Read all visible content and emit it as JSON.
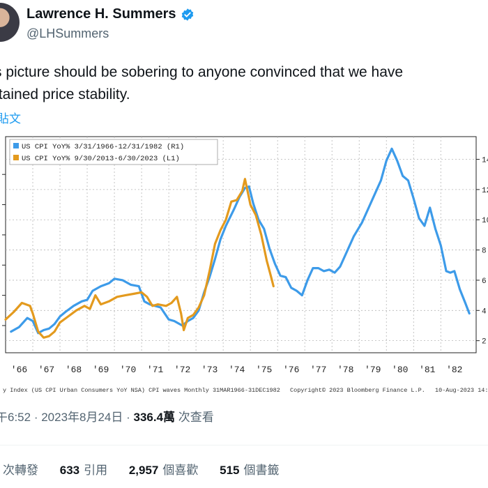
{
  "tweet": {
    "display_name": "Lawrence H. Summers",
    "handle": "@LHSummers",
    "text_line1": "s picture should be sobering to anyone convinced that we have",
    "text_line2": "ttained price stability.",
    "translate_label": "貼文"
  },
  "chart_footer": {
    "source_left": "y Index (US CPI Urban Consumers YoY NSA) CPI waves  Monthly 31MAR1966-31DEC1982",
    "copyright": "Copyright© 2023 Bloomberg Finance L.P.",
    "date_stamp": "10-Aug-2023 14:5"
  },
  "meta": {
    "time": "午6:52",
    "separator": " · ",
    "date": "2023年8月24日",
    "views_count": "336.4萬",
    "views_label": " 次查看"
  },
  "stats": {
    "reposts_label": "次轉發",
    "quotes_count": "633",
    "quotes_label": "引用",
    "likes_count": "2,957",
    "likes_label": "個喜歡",
    "bookmarks_count": "515",
    "bookmarks_label": "個書籤"
  },
  "colors": {
    "series_1966": "#3d9be9",
    "series_2013": "#e39a1e",
    "verified": "#1d9bf0"
  },
  "chart_data": {
    "type": "line",
    "x_ticks": [
      "'66",
      "'67",
      "'68",
      "'69",
      "'70",
      "'71",
      "'72",
      "'73",
      "'74",
      "'75",
      "'76",
      "'77",
      "'78",
      "'79",
      "'80",
      "'81",
      "'82"
    ],
    "right_axis_ticks": [
      "2",
      "4",
      "6",
      "8",
      "10",
      "12",
      "14"
    ],
    "right_axis_range": [
      1.2,
      15.5
    ],
    "x_range": [
      1966.0,
      1983.3
    ],
    "series": [
      {
        "name": "US CPI YoY% 3/31/1966-12/31/1982 (R1)",
        "color": "#3d9be9",
        "points": [
          [
            1966.2,
            2.6
          ],
          [
            1966.5,
            2.9
          ],
          [
            1966.8,
            3.5
          ],
          [
            1967.0,
            3.3
          ],
          [
            1967.2,
            2.5
          ],
          [
            1967.4,
            2.7
          ],
          [
            1967.6,
            2.8
          ],
          [
            1967.8,
            3.1
          ],
          [
            1968.0,
            3.6
          ],
          [
            1968.2,
            3.9
          ],
          [
            1968.5,
            4.3
          ],
          [
            1968.8,
            4.6
          ],
          [
            1969.0,
            4.7
          ],
          [
            1969.2,
            5.3
          ],
          [
            1969.5,
            5.6
          ],
          [
            1969.8,
            5.8
          ],
          [
            1970.0,
            6.1
          ],
          [
            1970.3,
            6.0
          ],
          [
            1970.6,
            5.7
          ],
          [
            1970.9,
            5.6
          ],
          [
            1971.1,
            4.6
          ],
          [
            1971.3,
            4.4
          ],
          [
            1971.5,
            4.3
          ],
          [
            1971.7,
            4.2
          ],
          [
            1972.0,
            3.4
          ],
          [
            1972.2,
            3.3
          ],
          [
            1972.5,
            3.0
          ],
          [
            1972.7,
            3.3
          ],
          [
            1972.9,
            3.5
          ],
          [
            1973.1,
            4.0
          ],
          [
            1973.3,
            5.2
          ],
          [
            1973.5,
            6.2
          ],
          [
            1973.7,
            7.4
          ],
          [
            1973.9,
            8.7
          ],
          [
            1974.1,
            9.6
          ],
          [
            1974.4,
            10.7
          ],
          [
            1974.6,
            11.5
          ],
          [
            1974.8,
            12.1
          ],
          [
            1974.95,
            12.2
          ],
          [
            1975.1,
            11.1
          ],
          [
            1975.3,
            10.0
          ],
          [
            1975.5,
            9.4
          ],
          [
            1975.7,
            8.1
          ],
          [
            1975.9,
            7.1
          ],
          [
            1976.1,
            6.3
          ],
          [
            1976.3,
            6.2
          ],
          [
            1976.5,
            5.5
          ],
          [
            1976.7,
            5.3
          ],
          [
            1976.9,
            5.0
          ],
          [
            1977.1,
            6.0
          ],
          [
            1977.3,
            6.8
          ],
          [
            1977.5,
            6.8
          ],
          [
            1977.7,
            6.6
          ],
          [
            1977.9,
            6.7
          ],
          [
            1978.1,
            6.5
          ],
          [
            1978.3,
            6.9
          ],
          [
            1978.5,
            7.7
          ],
          [
            1978.8,
            8.9
          ],
          [
            1979.1,
            9.8
          ],
          [
            1979.4,
            11.0
          ],
          [
            1979.6,
            11.8
          ],
          [
            1979.8,
            12.6
          ],
          [
            1980.0,
            13.9
          ],
          [
            1980.2,
            14.7
          ],
          [
            1980.4,
            13.9
          ],
          [
            1980.6,
            12.9
          ],
          [
            1980.8,
            12.6
          ],
          [
            1981.0,
            11.4
          ],
          [
            1981.2,
            10.1
          ],
          [
            1981.4,
            9.6
          ],
          [
            1981.6,
            10.8
          ],
          [
            1981.8,
            9.4
          ],
          [
            1982.0,
            8.3
          ],
          [
            1982.2,
            6.6
          ],
          [
            1982.35,
            6.5
          ],
          [
            1982.5,
            6.6
          ],
          [
            1982.7,
            5.4
          ],
          [
            1982.9,
            4.5
          ],
          [
            1983.05,
            3.8
          ]
        ]
      },
      {
        "name": "US CPI YoY% 9/30/2013-6/30/2023 (L1)",
        "color": "#e39a1e",
        "points": [
          [
            1966.0,
            3.4
          ],
          [
            1966.3,
            3.9
          ],
          [
            1966.6,
            4.5
          ],
          [
            1966.9,
            4.3
          ],
          [
            1967.0,
            3.8
          ],
          [
            1967.2,
            2.6
          ],
          [
            1967.4,
            2.2
          ],
          [
            1967.6,
            2.3
          ],
          [
            1967.8,
            2.6
          ],
          [
            1968.0,
            3.2
          ],
          [
            1968.3,
            3.6
          ],
          [
            1968.6,
            4.0
          ],
          [
            1968.9,
            4.3
          ],
          [
            1969.1,
            4.1
          ],
          [
            1969.3,
            5.0
          ],
          [
            1969.5,
            4.4
          ],
          [
            1969.8,
            4.6
          ],
          [
            1970.1,
            4.9
          ],
          [
            1970.4,
            5.0
          ],
          [
            1970.7,
            5.1
          ],
          [
            1971.0,
            5.2
          ],
          [
            1971.2,
            4.9
          ],
          [
            1971.4,
            4.3
          ],
          [
            1971.6,
            4.4
          ],
          [
            1971.9,
            4.3
          ],
          [
            1972.1,
            4.5
          ],
          [
            1972.3,
            4.9
          ],
          [
            1972.45,
            3.8
          ],
          [
            1972.55,
            2.7
          ],
          [
            1972.7,
            3.5
          ],
          [
            1972.9,
            3.7
          ],
          [
            1973.1,
            4.2
          ],
          [
            1973.3,
            5.0
          ],
          [
            1973.5,
            6.6
          ],
          [
            1973.7,
            8.4
          ],
          [
            1973.9,
            9.3
          ],
          [
            1974.1,
            10.0
          ],
          [
            1974.3,
            11.2
          ],
          [
            1974.5,
            11.3
          ],
          [
            1974.7,
            11.9
          ],
          [
            1974.8,
            12.7
          ],
          [
            1975.0,
            11.0
          ],
          [
            1975.2,
            10.3
          ],
          [
            1975.4,
            9.0
          ],
          [
            1975.6,
            7.3
          ],
          [
            1975.75,
            6.3
          ],
          [
            1975.85,
            5.6
          ]
        ]
      }
    ]
  }
}
